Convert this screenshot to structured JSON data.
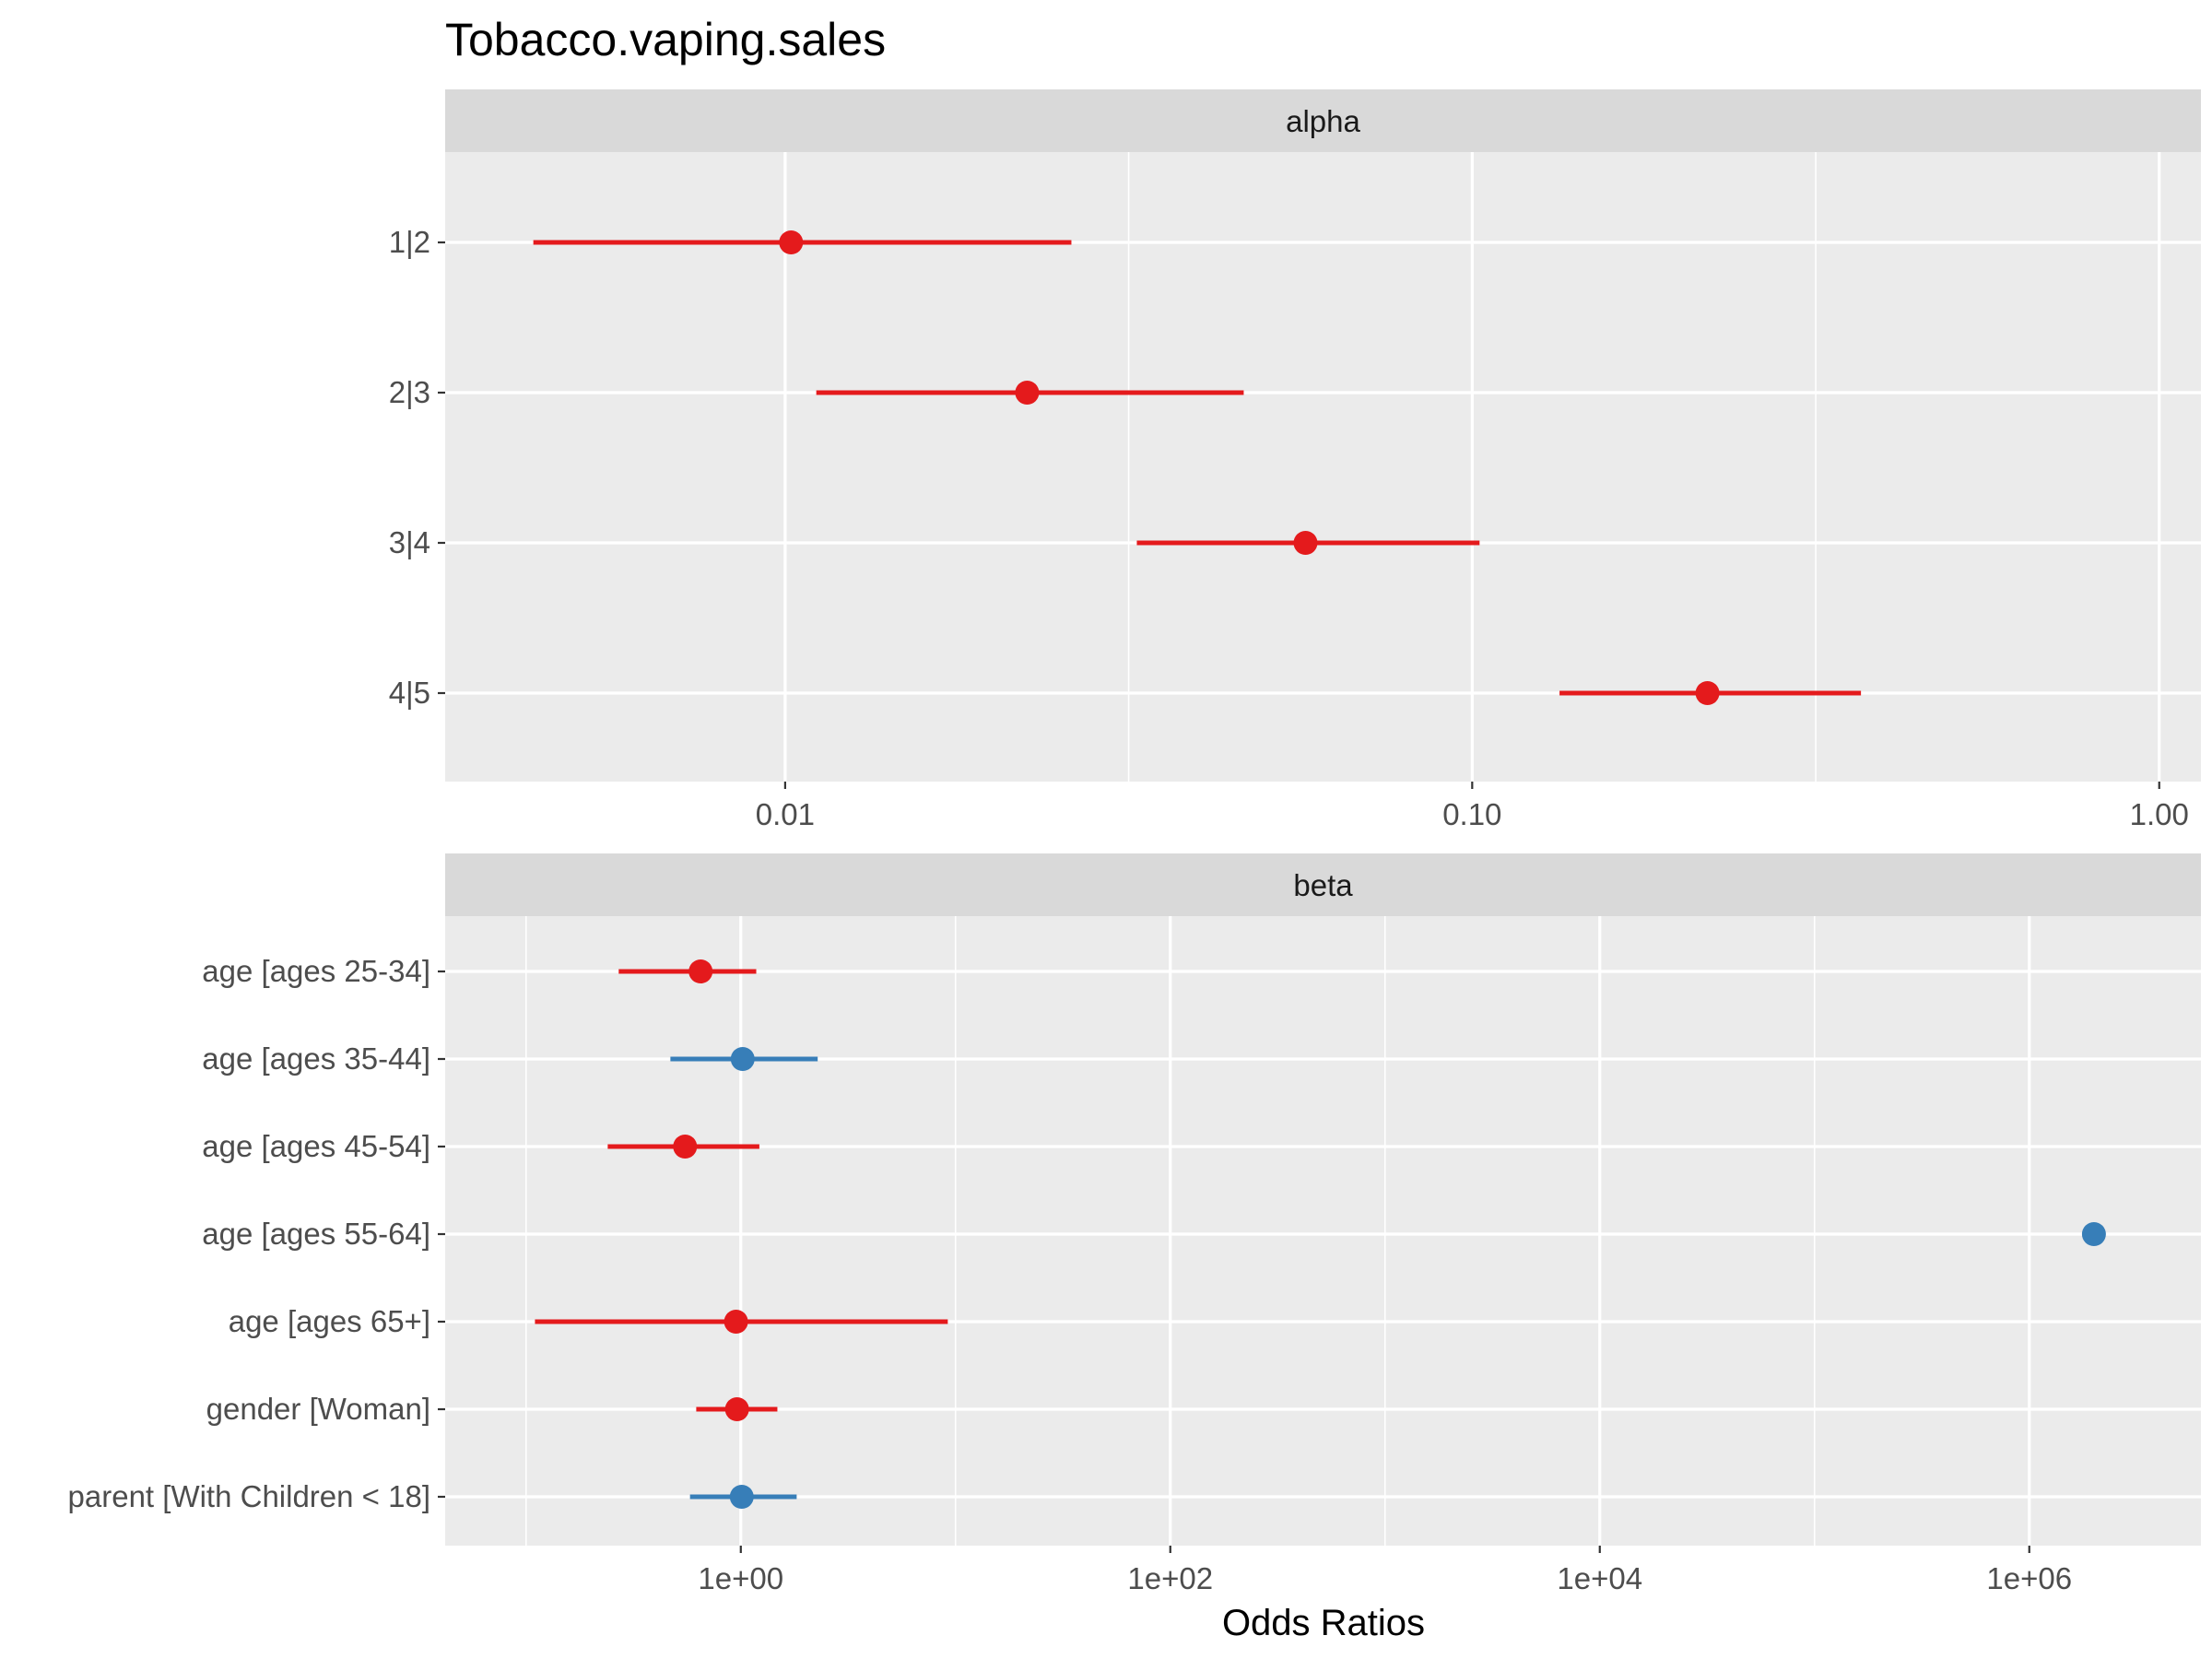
{
  "chart_data": {
    "type": "scatter",
    "title": "Tobacco.vaping.sales",
    "xlabel": "Odds Ratios",
    "colors": {
      "negative": "#E41A1C",
      "positive": "#377EB8",
      "panel_bg": "#EBEBEB",
      "strip_bg": "#D9D9D9",
      "grid": "#FFFFFF"
    },
    "panels": [
      {
        "strip": "alpha",
        "x_scale": "log10",
        "xlim": [
          0.0032,
          1.15
        ],
        "x_ticks": [
          0.01,
          0.1,
          1.0
        ],
        "x_tick_labels": [
          "0.01",
          "0.10",
          "1.00"
        ],
        "terms": [
          "1|2",
          "2|3",
          "3|4",
          "4|5"
        ],
        "points": [
          {
            "term": "1|2",
            "estimate": 0.0102,
            "conf_low": 0.0043,
            "conf_high": 0.0261,
            "sign": "negative"
          },
          {
            "term": "2|3",
            "estimate": 0.0225,
            "conf_low": 0.0111,
            "conf_high": 0.0465,
            "sign": "negative"
          },
          {
            "term": "3|4",
            "estimate": 0.0572,
            "conf_low": 0.0325,
            "conf_high": 0.1025,
            "sign": "negative"
          },
          {
            "term": "4|5",
            "estimate": 0.22,
            "conf_low": 0.134,
            "conf_high": 0.368,
            "sign": "negative"
          }
        ]
      },
      {
        "strip": "beta",
        "x_scale": "log10",
        "xlim": [
          0.042,
          6300000
        ],
        "x_ticks": [
          1,
          100,
          10000,
          1000000
        ],
        "x_tick_labels": [
          "1e+00",
          "1e+02",
          "1e+04",
          "1e+06"
        ],
        "terms": [
          "age [ages 25-34]",
          "age [ages 35-44]",
          "age [ages 45-54]",
          "age [ages 55-64]",
          "age [ages 65+]",
          "gender [Woman]",
          "parent [With Children < 18]"
        ],
        "points": [
          {
            "term": "age [ages 25-34]",
            "estimate": 0.65,
            "conf_low": 0.27,
            "conf_high": 1.18,
            "sign": "negative"
          },
          {
            "term": "age [ages 35-44]",
            "estimate": 1.02,
            "conf_low": 0.47,
            "conf_high": 2.28,
            "sign": "positive"
          },
          {
            "term": "age [ages 45-54]",
            "estimate": 0.55,
            "conf_low": 0.24,
            "conf_high": 1.22,
            "sign": "negative"
          },
          {
            "term": "age [ages 55-64]",
            "estimate": 2000000,
            "conf_low": null,
            "conf_high": null,
            "sign": "positive"
          },
          {
            "term": "age [ages 65+]",
            "estimate": 0.95,
            "conf_low": 0.11,
            "conf_high": 9.2,
            "sign": "negative"
          },
          {
            "term": "gender [Woman]",
            "estimate": 0.96,
            "conf_low": 0.62,
            "conf_high": 1.48,
            "sign": "negative"
          },
          {
            "term": "parent [With Children < 18]",
            "estimate": 1.01,
            "conf_low": 0.58,
            "conf_high": 1.82,
            "sign": "positive"
          }
        ]
      }
    ]
  }
}
